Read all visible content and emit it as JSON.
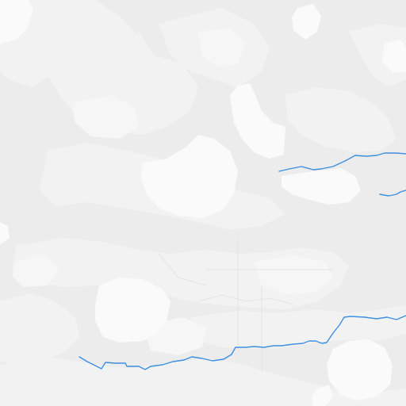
{
  "map": {
    "kind": "tile",
    "zoom_controls_visible": false,
    "labels_visible": false
  },
  "colors": {
    "land_base": "#ececec",
    "land_light": "#f2f2f2",
    "land_lighter": "#f6f6f6",
    "water_body": "#fafafa",
    "road_faint": "#e4e4e4",
    "river_line": "#3d8fe0"
  },
  "features": {
    "waterways": [
      {
        "name": ""
      },
      {
        "name": ""
      },
      {
        "name": ""
      }
    ],
    "water_bodies_count": 6
  }
}
